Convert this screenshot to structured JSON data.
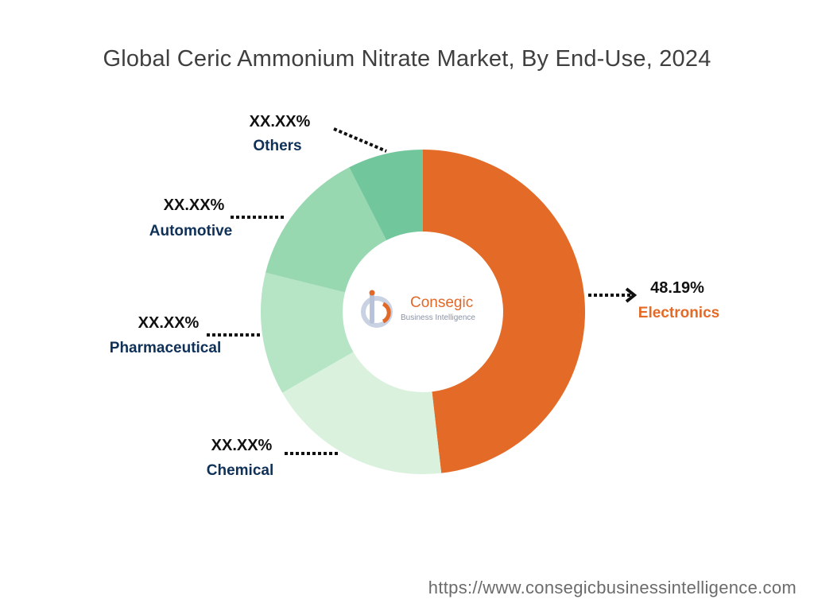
{
  "chart_data": {
    "type": "pie",
    "style": "donut",
    "title": "Global Ceric Ammonium Nitrate Market, By End-Use, 2024",
    "slices": [
      {
        "name": "Electronics",
        "value": 48.19,
        "label": "48.19%",
        "color": "#e36a27",
        "name_color": "#e36a27"
      },
      {
        "name": "Chemical",
        "value": 18.5,
        "label": "XX.XX%",
        "color": "#daf2dd",
        "name_color": "#0f3158"
      },
      {
        "name": "Pharmaceutical",
        "value": 12.2,
        "label": "XX.XX%",
        "color": "#b6e5c6",
        "name_color": "#0f3158"
      },
      {
        "name": "Automotive",
        "value": 13.6,
        "label": "XX.XX%",
        "color": "#97d8b1",
        "name_color": "#0f3158"
      },
      {
        "name": "Others",
        "value": 7.51,
        "label": "XX.XX%",
        "color": "#72c69c",
        "name_color": "#0f3158"
      }
    ],
    "legend": "none"
  },
  "logo": {
    "brand": "Consegic",
    "tagline": "Business Intelligence"
  },
  "source": "https://www.consegicbusinessintelligence.com"
}
